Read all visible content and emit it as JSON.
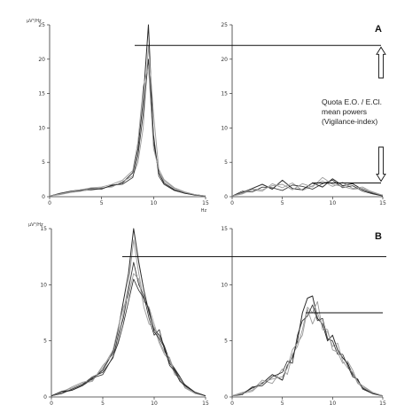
{
  "colors": {
    "axis": "#333333",
    "trace_dark": "#2a2a2a",
    "trace_light": "#9a9a9a",
    "background": "#ffffff"
  },
  "annotation": {
    "lines": [
      "Quota E.O. / E.Cl.",
      "mean powers",
      "(Vigilance-index)"
    ]
  },
  "chart_data": [
    {
      "id": "A-left",
      "type": "line",
      "panel_label": "A",
      "ylabel": "µV²/Hz",
      "xlabel": "Hz",
      "xlim": [
        0,
        15
      ],
      "ylim": [
        0,
        25
      ],
      "xticks": [
        "0",
        "5",
        "10",
        "15"
      ],
      "yticks": [
        "0",
        "5",
        "10",
        "15",
        "20",
        "25"
      ],
      "reference_line": 22,
      "series": [
        {
          "x": [
            0,
            1,
            2,
            3,
            4,
            5,
            6,
            7,
            8,
            8.5,
            9,
            9.5,
            10,
            10.5,
            11,
            12,
            13,
            14,
            15
          ],
          "y": [
            0.1,
            0.4,
            0.7,
            0.9,
            1.0,
            1.2,
            1.6,
            2.0,
            3.5,
            7,
            14,
            25,
            8,
            3.5,
            2.0,
            1.0,
            0.5,
            0.3,
            0.1
          ]
        },
        {
          "x": [
            0,
            1,
            2,
            3,
            4,
            5,
            6,
            7,
            8,
            8.5,
            9,
            9.5,
            10,
            10.5,
            11,
            12,
            13,
            14,
            15
          ],
          "y": [
            0.1,
            0.3,
            0.6,
            0.8,
            1.1,
            1.3,
            1.4,
            2.2,
            3.0,
            5,
            10,
            22,
            12,
            4,
            2.3,
            1.2,
            0.6,
            0.3,
            0.1
          ]
        },
        {
          "x": [
            0,
            1,
            2,
            3,
            4,
            5,
            6,
            7,
            8,
            8.5,
            9,
            9.5,
            10,
            10.5,
            11,
            12,
            13,
            14,
            15
          ],
          "y": [
            0.1,
            0.5,
            0.8,
            1.0,
            1.2,
            1.1,
            1.7,
            1.8,
            2.8,
            6,
            12,
            20,
            9,
            3.0,
            1.8,
            0.9,
            0.5,
            0.2,
            0.1
          ]
        },
        {
          "x": [
            0,
            1,
            2,
            3,
            4,
            5,
            6,
            7,
            8,
            8.5,
            9,
            9.5,
            10,
            10.5,
            11,
            12,
            13,
            14,
            15
          ],
          "y": [
            0.1,
            0.4,
            0.7,
            1.0,
            1.3,
            1.4,
            1.8,
            2.4,
            3.8,
            8,
            16,
            19,
            7,
            4,
            2.5,
            1.3,
            0.7,
            0.3,
            0.1
          ]
        }
      ]
    },
    {
      "id": "A-right",
      "type": "line",
      "ylabel": "",
      "xlabel": "",
      "xlim": [
        0,
        15
      ],
      "ylim": [
        0,
        25
      ],
      "xticks": [
        "0",
        "5",
        "10",
        "15"
      ],
      "yticks": [
        "0",
        "5",
        "10",
        "15",
        "20",
        "25"
      ],
      "reference_line": 2.0,
      "series": [
        {
          "x": [
            0,
            1,
            2,
            3,
            4,
            5,
            6,
            7,
            8,
            9,
            10,
            11,
            12,
            13,
            14,
            15
          ],
          "y": [
            0.1,
            0.6,
            1.2,
            1.8,
            1.1,
            2.4,
            1.2,
            1.0,
            2.0,
            1.4,
            2.6,
            1.6,
            1.9,
            1.0,
            0.5,
            0.2
          ]
        },
        {
          "x": [
            0,
            1,
            2,
            3,
            4,
            5,
            6,
            7,
            8,
            9,
            10,
            11,
            12,
            13,
            14,
            15
          ],
          "y": [
            0.1,
            0.4,
            1.0,
            0.8,
            1.9,
            1.3,
            2.0,
            0.9,
            1.6,
            2.3,
            1.5,
            2.1,
            1.2,
            1.4,
            0.6,
            0.2
          ]
        },
        {
          "x": [
            0,
            1,
            2,
            3,
            4,
            5,
            6,
            7,
            8,
            9,
            10,
            11,
            12,
            13,
            14,
            15
          ],
          "y": [
            0.1,
            0.8,
            0.7,
            1.4,
            1.3,
            0.9,
            1.7,
            1.5,
            1.1,
            1.9,
            2.4,
            1.3,
            1.6,
            0.8,
            0.4,
            0.1
          ]
        },
        {
          "x": [
            0,
            1,
            2,
            3,
            4,
            5,
            6,
            7,
            8,
            9,
            10,
            11,
            12,
            13,
            14,
            15
          ],
          "y": [
            0.1,
            0.5,
            1.1,
            1.0,
            1.6,
            1.8,
            1.0,
            1.9,
            1.4,
            2.8,
            1.8,
            1.5,
            1.1,
            1.2,
            0.7,
            0.2
          ]
        }
      ]
    },
    {
      "id": "B-left",
      "type": "line",
      "panel_label": "B",
      "ylabel": "µV²/Hz",
      "xlabel": "",
      "xlim": [
        0,
        15
      ],
      "ylim": [
        0,
        15
      ],
      "xticks": [
        "0",
        "5",
        "10",
        "15"
      ],
      "yticks": [
        "0",
        "5",
        "10",
        "15"
      ],
      "reference_line": 12.5,
      "series": [
        {
          "x": [
            0,
            1,
            2,
            3,
            4,
            5,
            6,
            6.5,
            7,
            7.5,
            8,
            8.5,
            9,
            9.5,
            10,
            10.5,
            11,
            11.5,
            12,
            12.5,
            13,
            14,
            15
          ],
          "y": [
            0.1,
            0.4,
            0.6,
            1.0,
            1.6,
            2.4,
            4.0,
            6.0,
            8.5,
            11,
            15,
            12,
            9.5,
            7.5,
            6.0,
            5.5,
            4.5,
            3.2,
            2.5,
            1.8,
            1.0,
            0.4,
            0.1
          ]
        },
        {
          "x": [
            0,
            1,
            2,
            3,
            4,
            5,
            6,
            6.5,
            7,
            7.5,
            8,
            8.5,
            9,
            9.5,
            10,
            10.5,
            11,
            11.5,
            12,
            12.5,
            13,
            14,
            15
          ],
          "y": [
            0.1,
            0.5,
            0.8,
            1.2,
            1.4,
            2.8,
            3.8,
            5.0,
            7.5,
            10,
            14,
            11,
            8.5,
            8.0,
            6.5,
            5.0,
            4.0,
            3.5,
            2.2,
            1.5,
            0.9,
            0.3,
            0.1
          ]
        },
        {
          "x": [
            0,
            1,
            2,
            3,
            4,
            5,
            6,
            6.5,
            7,
            7.5,
            8,
            8.5,
            9,
            9.5,
            10,
            10.5,
            11,
            11.5,
            12,
            12.5,
            13,
            14,
            15
          ],
          "y": [
            0.1,
            0.3,
            0.7,
            1.1,
            1.8,
            2.2,
            3.5,
            5.5,
            7.0,
            9.5,
            12,
            10,
            9.0,
            7.0,
            5.5,
            6.0,
            4.2,
            3.0,
            2.4,
            1.6,
            1.1,
            0.4,
            0.1
          ]
        },
        {
          "x": [
            0,
            1,
            2,
            3,
            4,
            5,
            6,
            6.5,
            7,
            7.5,
            8,
            8.5,
            9,
            9.5,
            10,
            10.5,
            11,
            11.5,
            12,
            12.5,
            13,
            14,
            15
          ],
          "y": [
            0.1,
            0.4,
            0.9,
            1.3,
            1.5,
            2.6,
            4.2,
            6.2,
            8.0,
            9.0,
            11,
            10.5,
            8.0,
            6.5,
            6.2,
            4.8,
            3.8,
            3.3,
            2.0,
            1.7,
            0.8,
            0.3,
            0.1
          ]
        },
        {
          "x": [
            0,
            1,
            2,
            3,
            4,
            5,
            6,
            6.5,
            7,
            7.5,
            8,
            8.5,
            9,
            9.5,
            10,
            10.5,
            11,
            11.5,
            12,
            12.5,
            13,
            14,
            15
          ],
          "y": [
            0.1,
            0.5,
            0.6,
            1.0,
            1.7,
            2.0,
            3.6,
            4.8,
            6.5,
            8.5,
            10.5,
            9.5,
            8.8,
            7.8,
            5.8,
            5.2,
            4.4,
            2.8,
            2.3,
            1.4,
            1.0,
            0.4,
            0.1
          ]
        }
      ]
    },
    {
      "id": "B-right",
      "type": "line",
      "ylabel": "",
      "xlabel": "",
      "xlim": [
        0,
        15
      ],
      "ylim": [
        0,
        15
      ],
      "xticks": [
        "0",
        "5",
        "10",
        "15"
      ],
      "yticks": [
        "0",
        "5",
        "10",
        "15"
      ],
      "reference_line": 7.5,
      "series": [
        {
          "x": [
            0,
            1,
            2,
            3,
            4,
            5,
            5.5,
            6,
            6.5,
            7,
            7.5,
            8,
            8.5,
            9,
            9.5,
            10,
            10.5,
            11,
            11.5,
            12,
            12.5,
            13,
            14,
            15
          ],
          "y": [
            0.1,
            0.3,
            0.8,
            1.2,
            2.0,
            1.5,
            2.8,
            3.5,
            5.0,
            7.5,
            8.8,
            9.0,
            7.0,
            6.5,
            5.0,
            5.5,
            4.2,
            3.5,
            3.0,
            2.0,
            1.5,
            0.8,
            0.3,
            0.1
          ]
        },
        {
          "x": [
            0,
            1,
            2,
            3,
            4,
            5,
            5.5,
            6,
            6.5,
            7,
            7.5,
            8,
            8.5,
            9,
            9.5,
            10,
            10.5,
            11,
            11.5,
            12,
            12.5,
            13,
            14,
            15
          ],
          "y": [
            0.1,
            0.4,
            0.6,
            1.5,
            1.2,
            2.5,
            2.0,
            3.8,
            4.5,
            6.0,
            8.0,
            7.5,
            8.5,
            6.0,
            5.8,
            4.5,
            4.8,
            3.2,
            2.6,
            2.2,
            1.2,
            0.9,
            0.4,
            0.1
          ]
        },
        {
          "x": [
            0,
            1,
            2,
            3,
            4,
            5,
            5.5,
            6,
            6.5,
            7,
            7.5,
            8,
            8.5,
            9,
            9.5,
            10,
            10.5,
            11,
            11.5,
            12,
            12.5,
            13,
            14,
            15
          ],
          "y": [
            0.1,
            0.2,
            0.9,
            1.0,
            1.8,
            2.2,
            3.2,
            3.0,
            5.5,
            6.8,
            7.2,
            8.2,
            6.8,
            7.0,
            5.2,
            5.0,
            3.8,
            3.8,
            2.8,
            1.8,
            1.6,
            0.7,
            0.3,
            0.1
          ]
        },
        {
          "x": [
            0,
            1,
            2,
            3,
            4,
            5,
            5.5,
            6,
            6.5,
            7,
            7.5,
            8,
            8.5,
            9,
            9.5,
            10,
            10.5,
            11,
            11.5,
            12,
            12.5,
            13,
            14,
            15
          ],
          "y": [
            0.1,
            0.3,
            0.5,
            1.3,
            1.6,
            1.8,
            2.6,
            4.2,
            4.8,
            5.5,
            7.8,
            6.5,
            7.5,
            6.2,
            6.0,
            4.2,
            4.0,
            3.0,
            3.2,
            2.4,
            1.3,
            1.0,
            0.4,
            0.1
          ]
        }
      ]
    }
  ]
}
